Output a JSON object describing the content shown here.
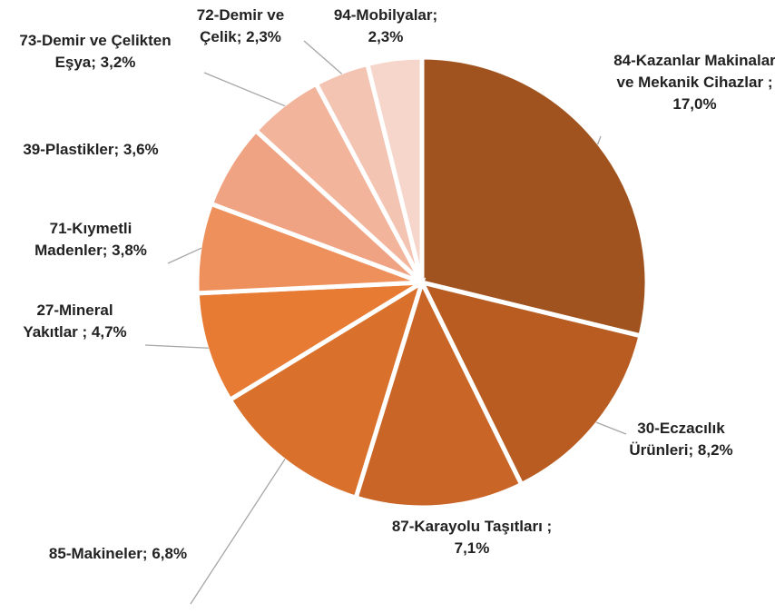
{
  "chart_data": {
    "type": "pie",
    "categories": [
      "84-Kazanlar Makinalar ve Mekanik Cihazlar ;",
      "30-Eczacılık Ürünleri;",
      "87-Karayolu Taşıtları ;",
      "85-Makineler;",
      "27-Mineral Yakıtlar ;",
      "71-Kıymetli Madenler;",
      "39-Plastikler;",
      "73-Demir ve Çelikten Eşya;",
      "72-Demir ve Çelik;",
      "94-Mobilyalar;"
    ],
    "values": [
      17.0,
      8.2,
      7.1,
      6.8,
      4.7,
      3.8,
      3.6,
      3.2,
      2.3,
      2.3
    ],
    "value_labels": [
      "17,0%",
      "8,2%",
      "7,1%",
      "6,8%",
      "4,7%",
      "3,8%",
      "3,6%",
      "3,2%",
      "2,3%",
      "2,3%"
    ],
    "colors": [
      "#A0531E",
      "#B85C22",
      "#C96526",
      "#D9702B",
      "#E87B33",
      "#EE905B",
      "#F0A382",
      "#F2B49B",
      "#F4C4B3",
      "#F6D5CA"
    ]
  }
}
